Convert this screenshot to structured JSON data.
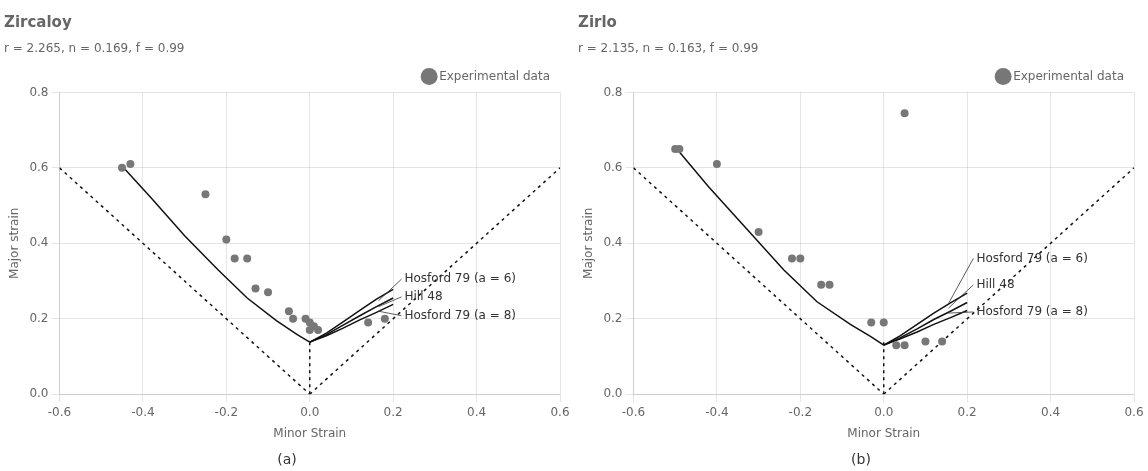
{
  "chart_data": [
    {
      "type": "scatter",
      "title": "Zircaloy",
      "subtitle": "r = 2.265, n = 0.169, f = 0.99",
      "caption": "(a)",
      "x_label": "Minor Strain",
      "y_label": "Major strain",
      "xlim": [
        -0.6,
        0.6
      ],
      "ylim": [
        0.0,
        0.8
      ],
      "xticks": [
        -0.6,
        -0.4,
        -0.2,
        {
          "value": 0.0,
          "label": "0.0"
        },
        0.2,
        0.4,
        0.6
      ],
      "yticks": [
        {
          "value": 0.0,
          "label": "0.0"
        },
        0.2,
        0.4,
        0.6,
        0.8
      ],
      "grid": true,
      "legend": "top-right",
      "series": [
        {
          "type": "line",
          "line_style": "dotted",
          "color": "#111111",
          "x": [
            -0.6,
            0.0
          ],
          "values": [
            0.6,
            0.0
          ]
        },
        {
          "type": "line",
          "line_style": "dotted",
          "color": "#111111",
          "x": [
            0.0,
            0.6
          ],
          "values": [
            0.0,
            0.6
          ]
        },
        {
          "type": "line",
          "line_style": "dotted",
          "color": "#111111",
          "x": [
            0.0,
            0.0
          ],
          "values": [
            0.0,
            0.138
          ]
        },
        {
          "type": "line",
          "line_style": "solid",
          "color": "#111111",
          "x": [
            -0.45,
            -0.38,
            -0.3,
            -0.22,
            -0.15,
            -0.08,
            -0.03,
            0.0
          ],
          "values": [
            0.605,
            0.52,
            0.42,
            0.33,
            0.255,
            0.195,
            0.158,
            0.138
          ]
        },
        {
          "type": "line",
          "line_style": "solid",
          "color": "#111111",
          "x": [
            0.0,
            0.04,
            0.08,
            0.12,
            0.16,
            0.2
          ],
          "values": [
            0.138,
            0.162,
            0.192,
            0.222,
            0.252,
            0.278
          ]
        },
        {
          "type": "line",
          "line_style": "solid",
          "color": "#111111",
          "x": [
            0.0,
            0.04,
            0.08,
            0.12,
            0.16,
            0.2
          ],
          "values": [
            0.138,
            0.158,
            0.183,
            0.208,
            0.232,
            0.255
          ]
        },
        {
          "type": "line",
          "line_style": "solid",
          "color": "#111111",
          "x": [
            0.0,
            0.04,
            0.08,
            0.12,
            0.16,
            0.2
          ],
          "values": [
            0.138,
            0.155,
            0.175,
            0.197,
            0.217,
            0.238
          ]
        },
        {
          "type": "scatter",
          "name": "Experimental data",
          "marker": "circle",
          "color": "#777777",
          "x": [
            -0.45,
            -0.43,
            -0.25,
            -0.2,
            -0.18,
            -0.15,
            -0.13,
            -0.1,
            -0.05,
            -0.04,
            0.0,
            0.01,
            0.02,
            0.0,
            -0.01,
            0.14,
            0.18
          ],
          "values": [
            0.6,
            0.61,
            0.53,
            0.41,
            0.36,
            0.36,
            0.28,
            0.27,
            0.22,
            0.2,
            0.19,
            0.18,
            0.17,
            0.17,
            0.2,
            0.19,
            0.2
          ]
        }
      ],
      "annotations": [
        {
          "text": "Hosford 79 (a = 6)",
          "x": 0.165,
          "y": 0.248,
          "text_x": 0.22,
          "text_y": 0.305
        },
        {
          "text": "Hill 48",
          "x": 0.165,
          "y": 0.232,
          "text_x": 0.22,
          "text_y": 0.258
        },
        {
          "text": "Hosford 79 (a = 8)",
          "x": 0.165,
          "y": 0.22,
          "text_x": 0.22,
          "text_y": 0.208
        }
      ]
    },
    {
      "type": "scatter",
      "title": "Zirlo",
      "subtitle": "r = 2.135, n = 0.163, f = 0.99",
      "caption": "(b)",
      "x_label": "Minor Strain",
      "y_label": "Major strain",
      "xlim": [
        -0.6,
        0.6
      ],
      "ylim": [
        0.0,
        0.8
      ],
      "xticks": [
        -0.6,
        -0.4,
        -0.2,
        {
          "value": 0.0,
          "label": "0.0"
        },
        0.2,
        0.4,
        0.6
      ],
      "yticks": [
        {
          "value": 0.0,
          "label": "0.0"
        },
        0.2,
        0.4,
        0.6,
        0.8
      ],
      "grid": true,
      "legend": "top-right",
      "series": [
        {
          "type": "line",
          "line_style": "dotted",
          "color": "#111111",
          "x": [
            -0.6,
            0.0
          ],
          "values": [
            0.6,
            0.0
          ]
        },
        {
          "type": "line",
          "line_style": "dotted",
          "color": "#111111",
          "x": [
            0.0,
            0.6
          ],
          "values": [
            0.0,
            0.6
          ]
        },
        {
          "type": "line",
          "line_style": "dotted",
          "color": "#111111",
          "x": [
            0.0,
            0.0
          ],
          "values": [
            0.0,
            0.138
          ]
        },
        {
          "type": "line",
          "line_style": "solid",
          "color": "#111111",
          "x": [
            -0.5,
            -0.42,
            -0.33,
            -0.24,
            -0.16,
            -0.08,
            -0.03,
            0.0
          ],
          "values": [
            0.655,
            0.55,
            0.44,
            0.33,
            0.245,
            0.185,
            0.152,
            0.13
          ]
        },
        {
          "type": "line",
          "line_style": "solid",
          "color": "#111111",
          "x": [
            0.0,
            0.04,
            0.08,
            0.12,
            0.16,
            0.2
          ],
          "values": [
            0.13,
            0.155,
            0.185,
            0.215,
            0.242,
            0.268
          ]
        },
        {
          "type": "line",
          "line_style": "solid",
          "color": "#111111",
          "x": [
            0.0,
            0.04,
            0.08,
            0.12,
            0.16,
            0.2
          ],
          "values": [
            0.13,
            0.15,
            0.173,
            0.198,
            0.22,
            0.243
          ]
        },
        {
          "type": "line",
          "line_style": "solid",
          "color": "#111111",
          "x": [
            0.0,
            0.04,
            0.08,
            0.12,
            0.16,
            0.2
          ],
          "values": [
            0.13,
            0.147,
            0.165,
            0.185,
            0.203,
            0.222
          ]
        },
        {
          "type": "scatter",
          "name": "Experimental data",
          "marker": "circle",
          "color": "#777777",
          "x": [
            -0.5,
            -0.49,
            -0.4,
            -0.3,
            -0.22,
            -0.2,
            -0.15,
            -0.13,
            -0.03,
            0.0,
            0.03,
            0.05,
            0.1,
            0.14,
            0.05
          ],
          "values": [
            0.65,
            0.65,
            0.61,
            0.43,
            0.36,
            0.36,
            0.29,
            0.29,
            0.19,
            0.19,
            0.13,
            0.13,
            0.14,
            0.14,
            0.745
          ]
        }
      ],
      "annotations": [
        {
          "text": "Hosford 79 (a = 6)",
          "x": 0.155,
          "y": 0.24,
          "text_x": 0.215,
          "text_y": 0.36
        },
        {
          "text": "Hill 48",
          "x": 0.155,
          "y": 0.228,
          "text_x": 0.215,
          "text_y": 0.29
        },
        {
          "text": "Hosford 79 (a = 8)",
          "x": 0.155,
          "y": 0.215,
          "text_x": 0.215,
          "text_y": 0.218
        }
      ]
    }
  ]
}
